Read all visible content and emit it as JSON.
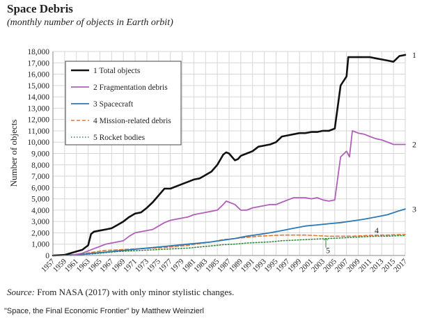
{
  "chart_data": {
    "type": "line",
    "title": "Space Debris",
    "subtitle": "(monthly number of objects in Earth orbit)",
    "ylabel": "Number of objects",
    "xlabel": "",
    "xlim": [
      1957,
      2017
    ],
    "ylim": [
      0,
      18000
    ],
    "yticks": [
      0,
      1000,
      2000,
      3000,
      4000,
      5000,
      6000,
      7000,
      8000,
      9000,
      10000,
      11000,
      12000,
      13000,
      14000,
      15000,
      16000,
      17000,
      18000
    ],
    "ytick_labels": [
      "0",
      "1,000",
      "2,000",
      "3,000",
      "4,000",
      "5,000",
      "6,000",
      "7,000",
      "8,000",
      "9,000",
      "10,000",
      "11,000",
      "12,000",
      "13,000",
      "14,000",
      "15,000",
      "16,000",
      "17,000",
      "18,000"
    ],
    "xticks": [
      1957,
      1959,
      1961,
      1963,
      1965,
      1967,
      1969,
      1971,
      1973,
      1975,
      1977,
      1979,
      1981,
      1983,
      1985,
      1987,
      1989,
      1991,
      1993,
      1995,
      1997,
      1999,
      2001,
      2003,
      2005,
      2007,
      2009,
      2011,
      2013,
      2015,
      2017
    ],
    "grid": true,
    "legend_position": "top-left",
    "series": [
      {
        "name": "1 Total objects",
        "end_label": "1",
        "color": "#111111",
        "dash": "solid",
        "width": 2.6,
        "x": [
          1957,
          1959,
          1960,
          1961,
          1962,
          1963,
          1963.5,
          1964,
          1965,
          1966,
          1967,
          1968,
          1969,
          1970,
          1971,
          1972,
          1973,
          1974,
          1975,
          1976,
          1977,
          1978,
          1979,
          1980,
          1981,
          1982,
          1983,
          1984,
          1985,
          1986,
          1986.5,
          1987,
          1988,
          1988.5,
          1989,
          1990,
          1991,
          1992,
          1993,
          1994,
          1995,
          1996,
          1997,
          1998,
          1999,
          2000,
          2001,
          2002,
          2003,
          2004,
          2005,
          2006,
          2007,
          2007.3,
          2008,
          2009,
          2010,
          2011,
          2012,
          2013,
          2014,
          2015,
          2016,
          2017
        ],
        "y": [
          0,
          50,
          200,
          350,
          500,
          900,
          1900,
          2100,
          2200,
          2300,
          2400,
          2700,
          3000,
          3400,
          3700,
          3800,
          4200,
          4700,
          5300,
          5900,
          5900,
          6100,
          6300,
          6500,
          6700,
          6800,
          7100,
          7400,
          8000,
          8900,
          9100,
          9000,
          8400,
          8500,
          8800,
          9000,
          9200,
          9600,
          9700,
          9800,
          10000,
          10500,
          10600,
          10700,
          10800,
          10800,
          10900,
          10900,
          11000,
          11000,
          11200,
          15000,
          15800,
          17500,
          17500,
          17500,
          17500,
          17500,
          17400,
          17300,
          17200,
          17100,
          17600,
          17700
        ]
      },
      {
        "name": "2 Fragmentation debris",
        "end_label": "2",
        "color": "#b05fb8",
        "dash": "solid",
        "width": 1.8,
        "x": [
          1960,
          1961,
          1962,
          1963,
          1964,
          1965,
          1966,
          1967,
          1968,
          1969,
          1970,
          1971,
          1972,
          1973,
          1974,
          1975,
          1976,
          1977,
          1978,
          1979,
          1980,
          1981,
          1982,
          1983,
          1984,
          1985,
          1986,
          1986.5,
          1987,
          1988,
          1989,
          1990,
          1991,
          1992,
          1993,
          1994,
          1995,
          1996,
          1997,
          1998,
          1999,
          2000,
          2001,
          2002,
          2003,
          2004,
          2005,
          2006,
          2007,
          2007.5,
          2008,
          2009,
          2010,
          2011,
          2012,
          2013,
          2014,
          2015,
          2016,
          2017
        ],
        "y": [
          0,
          100,
          200,
          400,
          600,
          800,
          1000,
          1100,
          1200,
          1300,
          1700,
          2000,
          2100,
          2200,
          2300,
          2600,
          2900,
          3100,
          3200,
          3300,
          3400,
          3600,
          3700,
          3800,
          3900,
          4000,
          4500,
          4800,
          4700,
          4500,
          4000,
          4000,
          4200,
          4300,
          4400,
          4500,
          4500,
          4700,
          4900,
          5100,
          5100,
          5100,
          5000,
          5100,
          4900,
          4800,
          4900,
          8700,
          9200,
          8700,
          11000,
          10800,
          10700,
          10500,
          10300,
          10200,
          10000,
          9800,
          9800,
          9800
        ]
      },
      {
        "name": "3 Spacecraft",
        "end_label": "3",
        "color": "#2a78b5",
        "dash": "solid",
        "width": 1.8,
        "x": [
          1957,
          1960,
          1962,
          1964,
          1966,
          1968,
          1970,
          1972,
          1974,
          1976,
          1978,
          1980,
          1982,
          1984,
          1986,
          1988,
          1990,
          1992,
          1994,
          1996,
          1998,
          2000,
          2002,
          2004,
          2006,
          2008,
          2010,
          2012,
          2014,
          2016,
          2017
        ],
        "y": [
          0,
          50,
          100,
          200,
          300,
          400,
          500,
          600,
          700,
          800,
          900,
          1000,
          1100,
          1200,
          1350,
          1500,
          1700,
          1850,
          2000,
          2200,
          2400,
          2600,
          2700,
          2800,
          2900,
          3050,
          3200,
          3400,
          3600,
          3950,
          4100
        ]
      },
      {
        "name": "4 Mission-related debris",
        "end_label": "4",
        "color": "#e8742a",
        "dash": "dashed",
        "width": 1.6,
        "x": [
          1957,
          1960,
          1962,
          1964,
          1966,
          1968,
          1970,
          1972,
          1974,
          1976,
          1978,
          1980,
          1982,
          1984,
          1986,
          1988,
          1990,
          1992,
          1994,
          1996,
          1998,
          2000,
          2002,
          2004,
          2006,
          2008,
          2010,
          2012,
          2014,
          2016,
          2017
        ],
        "y": [
          0,
          50,
          150,
          300,
          450,
          500,
          550,
          600,
          650,
          700,
          800,
          900,
          1050,
          1200,
          1400,
          1500,
          1600,
          1700,
          1750,
          1800,
          1800,
          1800,
          1750,
          1700,
          1700,
          1700,
          1750,
          1800,
          1800,
          1850,
          1850
        ]
      },
      {
        "name": "5 Rocket bodies",
        "end_label": "5",
        "color": "#2f8a3a",
        "dash": "dotted",
        "width": 1.6,
        "x": [
          1957,
          1960,
          1962,
          1964,
          1966,
          1968,
          1970,
          1972,
          1974,
          1976,
          1978,
          1980,
          1982,
          1984,
          1986,
          1988,
          1990,
          1992,
          1994,
          1996,
          1998,
          2000,
          2002,
          2004,
          2006,
          2008,
          2010,
          2012,
          2014,
          2016,
          2017
        ],
        "y": [
          0,
          30,
          80,
          150,
          250,
          350,
          400,
          450,
          500,
          550,
          600,
          650,
          750,
          850,
          950,
          1000,
          1100,
          1150,
          1200,
          1300,
          1350,
          1400,
          1450,
          1500,
          1550,
          1600,
          1650,
          1700,
          1700,
          1750,
          1750
        ]
      }
    ]
  },
  "footer": {
    "source_label": "Source:",
    "source_text": " From NASA (2017) with only minor stylistic changes.",
    "credit": "\"Space, the Final Economic Frontier\" by Matthew Weinzierl"
  }
}
